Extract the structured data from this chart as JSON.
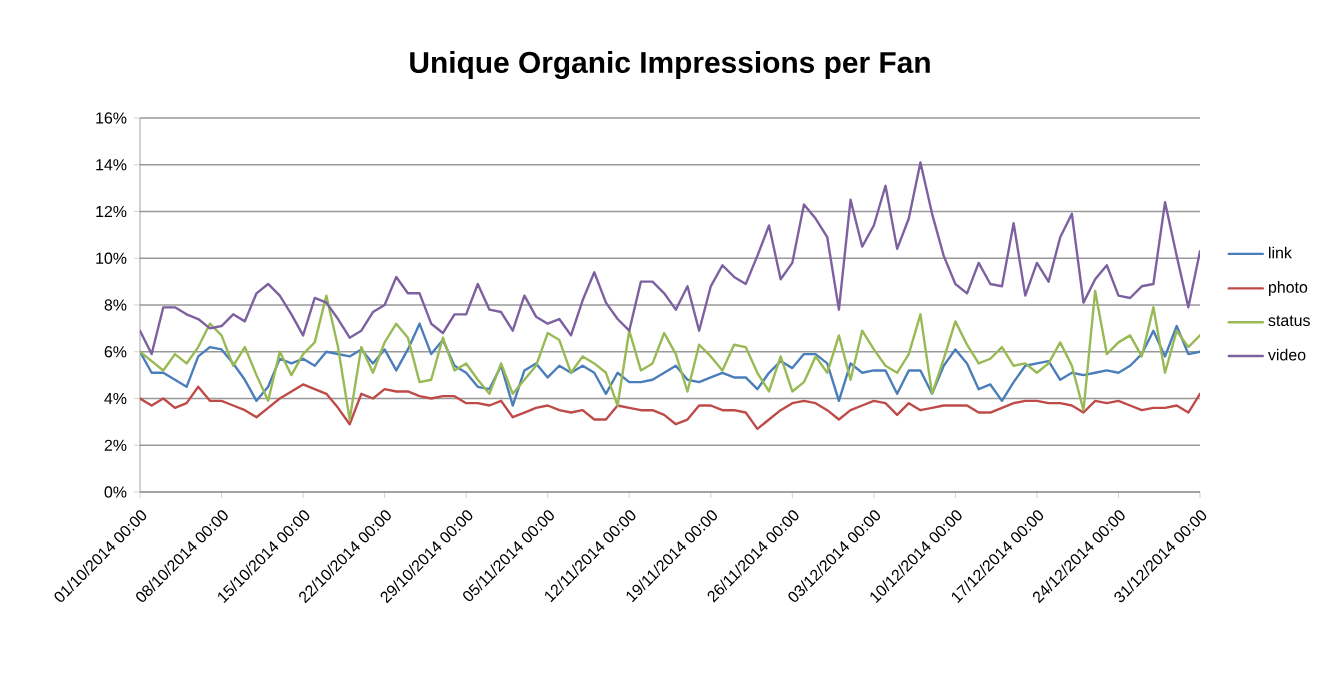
{
  "chart_data": {
    "type": "line",
    "title": "Unique Organic Impressions per Fan",
    "x": [
      "2014-10-01",
      "2014-10-02",
      "2014-10-03",
      "2014-10-04",
      "2014-10-05",
      "2014-10-06",
      "2014-10-07",
      "2014-10-08",
      "2014-10-09",
      "2014-10-10",
      "2014-10-11",
      "2014-10-12",
      "2014-10-13",
      "2014-10-14",
      "2014-10-15",
      "2014-10-16",
      "2014-10-17",
      "2014-10-18",
      "2014-10-19",
      "2014-10-20",
      "2014-10-21",
      "2014-10-22",
      "2014-10-23",
      "2014-10-24",
      "2014-10-25",
      "2014-10-26",
      "2014-10-27",
      "2014-10-28",
      "2014-10-29",
      "2014-10-30",
      "2014-10-31",
      "2014-11-01",
      "2014-11-02",
      "2014-11-03",
      "2014-11-04",
      "2014-11-05",
      "2014-11-06",
      "2014-11-07",
      "2014-11-08",
      "2014-11-09",
      "2014-11-10",
      "2014-11-11",
      "2014-11-12",
      "2014-11-13",
      "2014-11-14",
      "2014-11-15",
      "2014-11-16",
      "2014-11-17",
      "2014-11-18",
      "2014-11-19",
      "2014-11-20",
      "2014-11-21",
      "2014-11-22",
      "2014-11-23",
      "2014-11-24",
      "2014-11-25",
      "2014-11-26",
      "2014-11-27",
      "2014-11-28",
      "2014-11-29",
      "2014-11-30",
      "2014-12-01",
      "2014-12-02",
      "2014-12-03",
      "2014-12-04",
      "2014-12-05",
      "2014-12-06",
      "2014-12-07",
      "2014-12-08",
      "2014-12-09",
      "2014-12-10",
      "2014-12-11",
      "2014-12-12",
      "2014-12-13",
      "2014-12-14",
      "2014-12-15",
      "2014-12-16",
      "2014-12-17",
      "2014-12-18",
      "2014-12-19",
      "2014-12-20",
      "2014-12-21",
      "2014-12-22",
      "2014-12-23",
      "2014-12-24",
      "2014-12-25",
      "2014-12-26",
      "2014-12-27",
      "2014-12-28",
      "2014-12-29",
      "2014-12-30",
      "2014-12-31"
    ],
    "series": [
      {
        "name": "link",
        "color": "#4a7ebb",
        "values": [
          6.0,
          5.1,
          5.1,
          4.8,
          4.5,
          5.8,
          6.2,
          6.1,
          5.5,
          4.8,
          3.9,
          4.5,
          5.7,
          5.5,
          5.7,
          5.4,
          6.0,
          5.9,
          5.8,
          6.1,
          5.5,
          6.1,
          5.2,
          6.1,
          7.2,
          5.9,
          6.5,
          5.4,
          5.1,
          4.5,
          4.4,
          5.4,
          3.7,
          5.2,
          5.5,
          4.9,
          5.4,
          5.1,
          5.4,
          5.1,
          4.2,
          5.1,
          4.7,
          4.7,
          4.8,
          5.1,
          5.4,
          4.8,
          4.7,
          4.9,
          5.1,
          4.9,
          4.9,
          4.4,
          5.1,
          5.6,
          5.3,
          5.9,
          5.9,
          5.5,
          3.9,
          5.5,
          5.1,
          5.2,
          5.2,
          4.2,
          5.2,
          5.2,
          4.2,
          5.4,
          6.1,
          5.5,
          4.4,
          4.6,
          3.9,
          4.7,
          5.4,
          5.5,
          5.6,
          4.8,
          5.1,
          5.0,
          5.1,
          5.2,
          5.1,
          5.4,
          5.9,
          6.9,
          5.8,
          7.1,
          5.9,
          6.0
        ]
      },
      {
        "name": "photo",
        "color": "#be4b48",
        "values": [
          4.0,
          3.7,
          4.0,
          3.6,
          3.8,
          4.5,
          3.9,
          3.9,
          3.7,
          3.5,
          3.2,
          3.6,
          4.0,
          4.3,
          4.6,
          4.4,
          4.2,
          3.6,
          2.9,
          4.2,
          4.0,
          4.4,
          4.3,
          4.3,
          4.1,
          4.0,
          4.1,
          4.1,
          3.8,
          3.8,
          3.7,
          3.9,
          3.2,
          3.4,
          3.6,
          3.7,
          3.5,
          3.4,
          3.5,
          3.1,
          3.1,
          3.7,
          3.6,
          3.5,
          3.5,
          3.3,
          2.9,
          3.1,
          3.7,
          3.7,
          3.5,
          3.5,
          3.4,
          2.7,
          3.1,
          3.5,
          3.8,
          3.9,
          3.8,
          3.5,
          3.1,
          3.5,
          3.7,
          3.9,
          3.8,
          3.3,
          3.8,
          3.5,
          3.6,
          3.7,
          3.7,
          3.7,
          3.4,
          3.4,
          3.6,
          3.8,
          3.9,
          3.9,
          3.8,
          3.8,
          3.7,
          3.4,
          3.9,
          3.8,
          3.9,
          3.7,
          3.5,
          3.6,
          3.6,
          3.7,
          3.4,
          4.2
        ]
      },
      {
        "name": "status",
        "color": "#98b954",
        "values": [
          6.0,
          5.6,
          5.2,
          5.9,
          5.5,
          6.2,
          7.2,
          6.7,
          5.4,
          6.2,
          5.0,
          3.9,
          6.0,
          5.0,
          5.9,
          6.4,
          8.4,
          6.2,
          3.1,
          6.2,
          5.1,
          6.4,
          7.2,
          6.6,
          4.7,
          4.8,
          6.6,
          5.2,
          5.5,
          4.8,
          4.2,
          5.5,
          4.2,
          4.8,
          5.4,
          6.8,
          6.5,
          5.1,
          5.8,
          5.5,
          5.1,
          3.7,
          6.9,
          5.2,
          5.5,
          6.8,
          5.9,
          4.3,
          6.3,
          5.8,
          5.2,
          6.3,
          6.2,
          5.1,
          4.3,
          5.8,
          4.3,
          4.7,
          5.8,
          5.1,
          6.7,
          4.8,
          6.9,
          6.1,
          5.4,
          5.1,
          5.9,
          7.6,
          4.2,
          5.7,
          7.3,
          6.3,
          5.5,
          5.7,
          6.2,
          5.4,
          5.5,
          5.1,
          5.5,
          6.4,
          5.4,
          3.5,
          8.6,
          5.9,
          6.4,
          6.7,
          5.8,
          7.9,
          5.1,
          6.9,
          6.2,
          6.7
        ]
      },
      {
        "name": "video",
        "color": "#7d60a0",
        "values": [
          6.9,
          5.9,
          7.9,
          7.9,
          7.6,
          7.4,
          7.0,
          7.1,
          7.6,
          7.3,
          8.5,
          8.9,
          8.4,
          7.6,
          6.7,
          8.3,
          8.1,
          7.4,
          6.6,
          6.9,
          7.7,
          8.0,
          9.2,
          8.5,
          8.5,
          7.2,
          6.8,
          7.6,
          7.6,
          8.9,
          7.8,
          7.7,
          6.9,
          8.4,
          7.5,
          7.2,
          7.4,
          6.7,
          8.2,
          9.4,
          8.1,
          7.4,
          6.9,
          9.0,
          9.0,
          8.5,
          7.8,
          8.8,
          6.9,
          8.8,
          9.7,
          9.2,
          8.9,
          10.1,
          11.4,
          9.1,
          9.8,
          12.3,
          11.7,
          10.9,
          7.8,
          12.5,
          10.5,
          11.4,
          13.1,
          10.4,
          11.7,
          14.1,
          11.9,
          10.1,
          8.9,
          8.5,
          9.8,
          8.9,
          8.8,
          11.5,
          8.4,
          9.8,
          9.0,
          10.9,
          11.9,
          8.1,
          9.1,
          9.7,
          8.4,
          8.3,
          8.8,
          8.9,
          12.4,
          10.1,
          7.9,
          10.3
        ]
      }
    ],
    "xlim": [
      "2014-10-01",
      "2014-12-31"
    ],
    "xticks": [
      {
        "value": "2014-10-01",
        "label": "01/10/2014 00:00"
      },
      {
        "value": "2014-10-08",
        "label": "08/10/2014 00:00"
      },
      {
        "value": "2014-10-15",
        "label": "15/10/2014 00:00"
      },
      {
        "value": "2014-10-22",
        "label": "22/10/2014 00:00"
      },
      {
        "value": "2014-10-29",
        "label": "29/10/2014 00:00"
      },
      {
        "value": "2014-11-05",
        "label": "05/11/2014 00:00"
      },
      {
        "value": "2014-11-12",
        "label": "12/11/2014 00:00"
      },
      {
        "value": "2014-11-19",
        "label": "19/11/2014 00:00"
      },
      {
        "value": "2014-11-26",
        "label": "26/11/2014 00:00"
      },
      {
        "value": "2014-12-03",
        "label": "03/12/2014 00:00"
      },
      {
        "value": "2014-12-10",
        "label": "10/12/2014 00:00"
      },
      {
        "value": "2014-12-17",
        "label": "17/12/2014 00:00"
      },
      {
        "value": "2014-12-24",
        "label": "24/12/2014 00:00"
      },
      {
        "value": "2014-12-31",
        "label": "31/12/2014 00:00"
      }
    ],
    "ylim": [
      0,
      16
    ],
    "yticks": [
      {
        "value": 0,
        "label": "0%"
      },
      {
        "value": 2,
        "label": "2%"
      },
      {
        "value": 4,
        "label": "4%"
      },
      {
        "value": 6,
        "label": "6%"
      },
      {
        "value": 8,
        "label": "8%"
      },
      {
        "value": 10,
        "label": "10%"
      },
      {
        "value": 12,
        "label": "12%"
      },
      {
        "value": 14,
        "label": "14%"
      },
      {
        "value": 16,
        "label": "16%"
      }
    ],
    "grid": "y",
    "legend": "right",
    "marker": "none",
    "line_style": "solid"
  }
}
